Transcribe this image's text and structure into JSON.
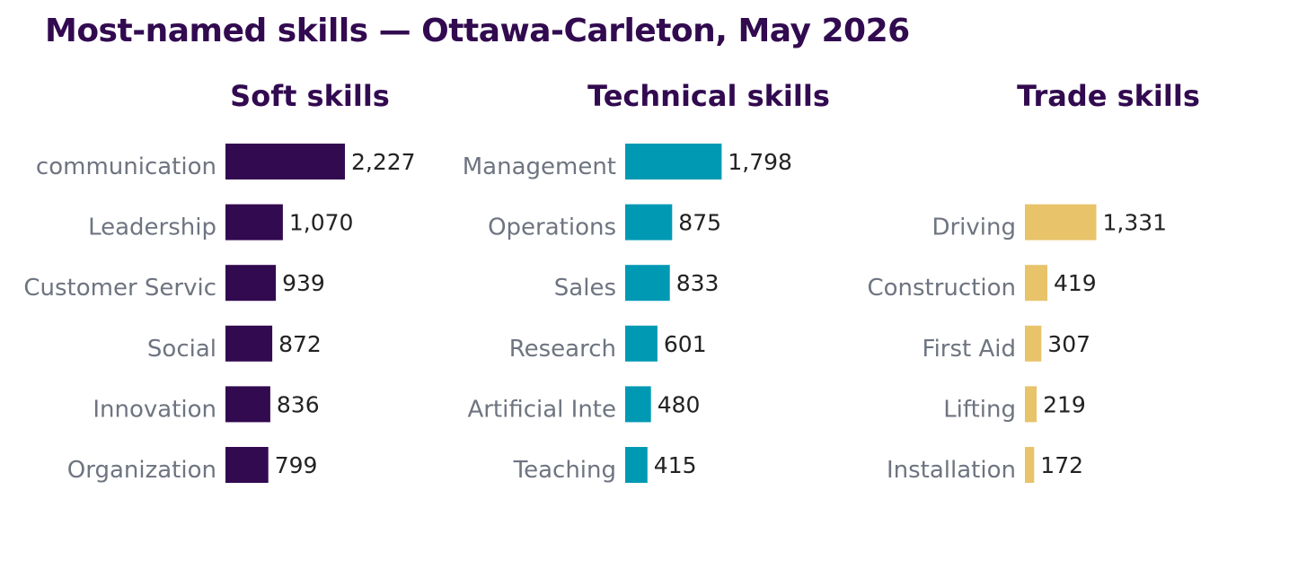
{
  "title": "Most-named skills — Ottawa-Carleton, May 2026",
  "colors": {
    "title": "#320a50",
    "soft": "#320a50",
    "technical": "#0099b4",
    "trade": "#e8c36a",
    "category_text": "#6e7480",
    "value_text": "#222222"
  },
  "chart_data": [
    {
      "type": "bar",
      "orientation": "horizontal",
      "title": "Soft skills",
      "color": "#320a50",
      "categories": [
        "communication",
        "Leadership",
        "Customer Servic",
        "Social",
        "Innovation",
        "Organization"
      ],
      "values": [
        2227,
        1070,
        939,
        872,
        836,
        799
      ],
      "value_labels": [
        "2,227",
        "1,070",
        "939",
        "872",
        "836",
        "799"
      ]
    },
    {
      "type": "bar",
      "orientation": "horizontal",
      "title": "Technical skills",
      "color": "#0099b4",
      "categories": [
        "Management",
        "Operations",
        "Sales",
        "Research",
        "Artificial Inte",
        "Teaching"
      ],
      "values": [
        1798,
        875,
        833,
        601,
        480,
        415
      ],
      "value_labels": [
        "1,798",
        "875",
        "833",
        "601",
        "480",
        "415"
      ]
    },
    {
      "type": "bar",
      "orientation": "horizontal",
      "title": "Trade skills",
      "color": "#e8c36a",
      "categories": [
        "",
        "Driving",
        "Construction",
        "First Aid",
        "Lifting",
        "Installation"
      ],
      "values": [
        null,
        1331,
        419,
        307,
        219,
        172
      ],
      "value_labels": [
        "",
        "1,331",
        "419",
        "307",
        "219",
        "172"
      ]
    }
  ]
}
